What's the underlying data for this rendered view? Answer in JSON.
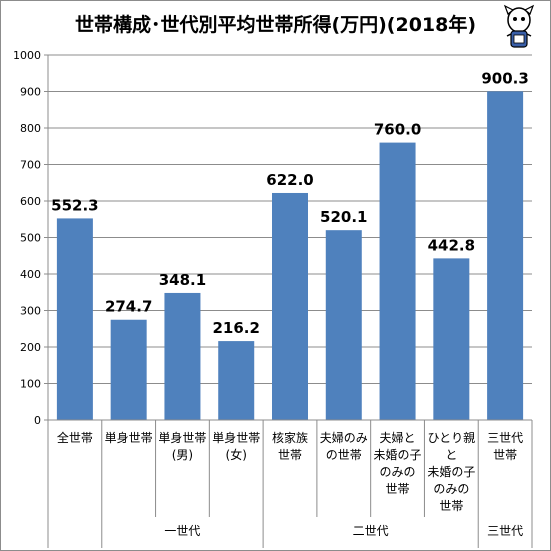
{
  "chart_data": {
    "type": "bar",
    "title": "世帯構成･世代別平均世帯所得(万円)(2018年)",
    "categories": [
      [
        "全世帯"
      ],
      [
        "単身世帯"
      ],
      [
        "単身世帯",
        "(男)"
      ],
      [
        "単身世帯",
        "(女)"
      ],
      [
        "核家族",
        "世帯"
      ],
      [
        "夫婦のみ",
        "の世帯"
      ],
      [
        "夫婦と",
        "未婚の子",
        "のみの",
        "世帯"
      ],
      [
        "ひとり親",
        "と",
        "未婚の子",
        "のみの",
        "世帯"
      ],
      [
        "三世代",
        "世帯"
      ]
    ],
    "values": [
      552.3,
      274.7,
      348.1,
      216.2,
      622.0,
      520.1,
      760.0,
      442.8,
      900.3
    ],
    "value_labels": [
      "552.3",
      "274.7",
      "348.1",
      "216.2",
      "622.0",
      "520.1",
      "760.0",
      "442.8",
      "900.3"
    ],
    "groups": [
      {
        "label": "一世代",
        "start": 1,
        "end": 3
      },
      {
        "label": "二世代",
        "start": 4,
        "end": 7
      },
      {
        "label": "三世代",
        "start": 8,
        "end": 8
      }
    ],
    "ylim": [
      0,
      1000
    ],
    "yticks": [
      "0",
      "100",
      "200",
      "300",
      "400",
      "500",
      "600",
      "700",
      "800",
      "900",
      "1000"
    ],
    "grid": true,
    "xlabel": "",
    "ylabel": "",
    "bar_color": "#4f81bd"
  }
}
